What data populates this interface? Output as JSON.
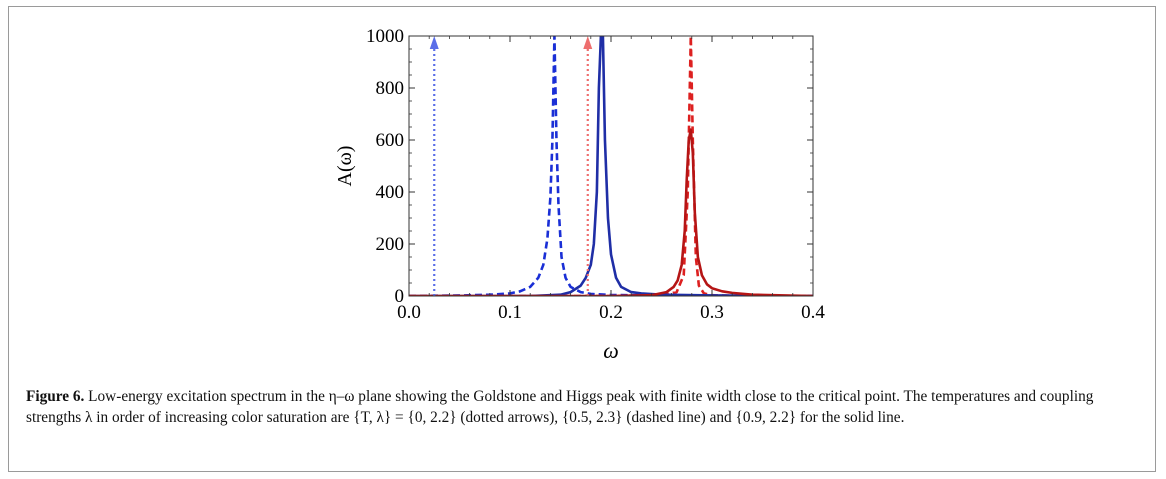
{
  "chart_data": {
    "type": "line",
    "xlabel": "ω",
    "ylabel": "A(ω)",
    "xlim": [
      0.0,
      0.4
    ],
    "ylim": [
      0,
      1000
    ],
    "x_ticks": [
      "0.0",
      "0.1",
      "0.2",
      "0.3",
      "0.4"
    ],
    "y_ticks": [
      "0",
      "200",
      "400",
      "600",
      "800",
      "1000"
    ],
    "x_tick_values": [
      0.0,
      0.1,
      0.2,
      0.3,
      0.4
    ],
    "y_tick_values": [
      0,
      200,
      400,
      600,
      800,
      1000
    ],
    "grid": false,
    "legend": "none",
    "series": [
      {
        "style": "dotted-arrow",
        "color": "#5a6ee8",
        "x": [
          0.025,
          0.025
        ],
        "y": [
          0,
          1000
        ]
      },
      {
        "style": "dotted-arrow",
        "color": "#ee6e6e",
        "x": [
          0.177,
          0.177
        ],
        "y": [
          0,
          1000
        ]
      },
      {
        "style": "dashed",
        "color": "#1a2fd6",
        "x": [
          0.0,
          0.05,
          0.08,
          0.1,
          0.11,
          0.12,
          0.128,
          0.133,
          0.137,
          0.14,
          0.142,
          0.144,
          0.146,
          0.148,
          0.151,
          0.155,
          0.16,
          0.17,
          0.18,
          0.2,
          0.25,
          0.4
        ],
        "y": [
          0,
          2,
          5,
          10,
          18,
          35,
          70,
          120,
          220,
          380,
          600,
          1000,
          600,
          350,
          150,
          70,
          35,
          15,
          8,
          4,
          2,
          0
        ]
      },
      {
        "style": "dashed",
        "color": "#dd2020",
        "x": [
          0.0,
          0.2,
          0.25,
          0.265,
          0.272,
          0.276,
          0.279,
          0.281,
          0.284,
          0.287,
          0.292,
          0.3,
          0.32,
          0.4
        ],
        "y": [
          0,
          0,
          3,
          15,
          80,
          400,
          1000,
          600,
          150,
          40,
          10,
          3,
          1,
          0
        ]
      },
      {
        "style": "solid",
        "color": "#1f2ea6",
        "x": [
          0.0,
          0.12,
          0.15,
          0.16,
          0.17,
          0.175,
          0.18,
          0.183,
          0.186,
          0.188,
          0.19,
          0.192,
          0.194,
          0.197,
          0.2,
          0.205,
          0.21,
          0.215,
          0.22,
          0.23,
          0.25,
          0.3,
          0.4
        ],
        "y": [
          0,
          0,
          5,
          15,
          40,
          70,
          120,
          200,
          400,
          800,
          1000,
          1000,
          600,
          300,
          160,
          70,
          35,
          25,
          15,
          10,
          5,
          2,
          0
        ]
      },
      {
        "style": "solid",
        "color": "#b51515",
        "x": [
          0.0,
          0.2,
          0.24,
          0.255,
          0.262,
          0.266,
          0.27,
          0.273,
          0.275,
          0.277,
          0.279,
          0.281,
          0.283,
          0.286,
          0.29,
          0.295,
          0.3,
          0.31,
          0.32,
          0.34,
          0.4
        ],
        "y": [
          0,
          0,
          3,
          15,
          35,
          60,
          120,
          250,
          450,
          600,
          640,
          550,
          320,
          150,
          80,
          45,
          30,
          18,
          12,
          5,
          0
        ]
      }
    ]
  },
  "caption": {
    "label": "Figure 6.",
    "text": " Low-energy excitation spectrum in the η–ω plane showing the Goldstone and Higgs peak with finite width close to the critical point. The temperatures and coupling strengths λ in order of increasing color saturation are {T, λ} = {0, 2.2} (dotted arrows), {0.5, 2.3} (dashed line) and {0.9, 2.2} for the solid line."
  }
}
